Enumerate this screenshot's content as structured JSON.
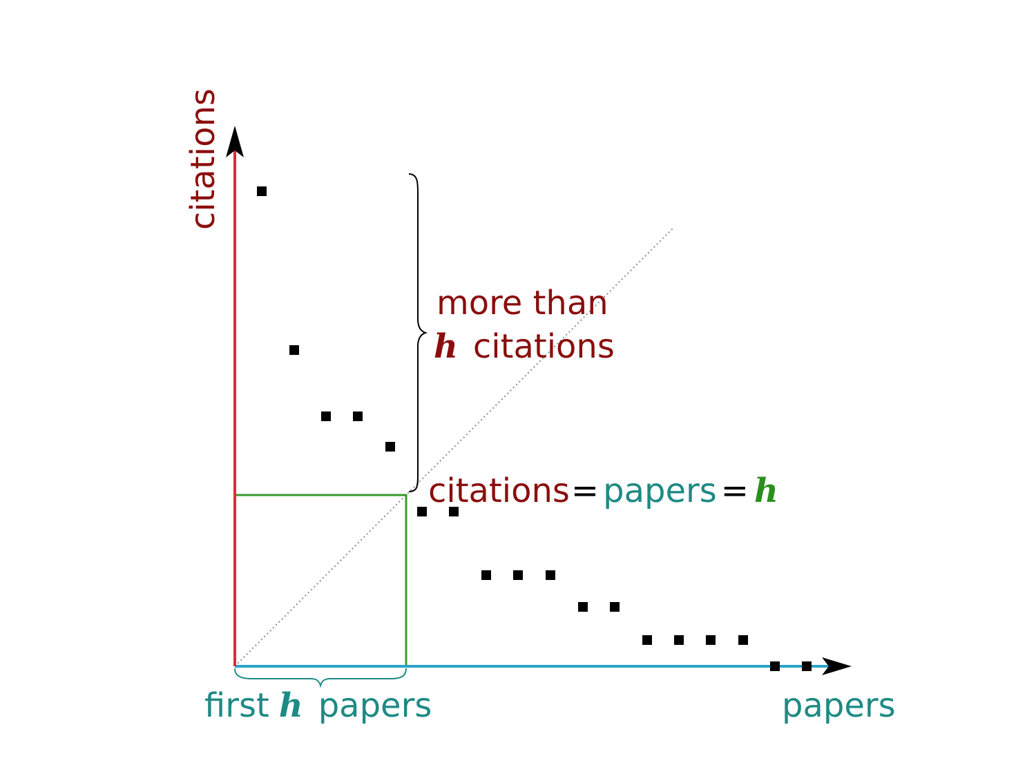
{
  "colors": {
    "citations": "#8b0d0d",
    "papers": "#1e8a84",
    "h": "#2a8f1e",
    "y_axis": "#e02a3a",
    "x_axis": "#2aa3c8",
    "box": "#3a9a2e",
    "points": "#000000",
    "diagonal": "#8a8a8a"
  },
  "axes": {
    "y_label": "citations",
    "x_label": "papers"
  },
  "brace_right": {
    "line1": "more than",
    "h": "h",
    "line2": "citations"
  },
  "equation": {
    "citations": "citations",
    "eq1": "=",
    "papers": "papers",
    "eq2": "=",
    "h": "h"
  },
  "brace_bottom": {
    "first": "first",
    "h": "h",
    "papers": "papers"
  },
  "icons": {
    "y_arrow": "arrow-up-icon",
    "x_arrow": "arrow-right-icon"
  }
}
